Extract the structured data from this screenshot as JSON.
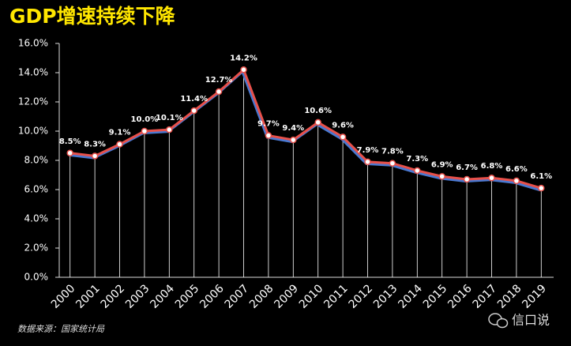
{
  "chart_data": {
    "type": "line",
    "title": "GDP增速持续下降",
    "categories": [
      "2000",
      "2001",
      "2002",
      "2003",
      "2004",
      "2005",
      "2006",
      "2007",
      "2008",
      "2009",
      "2010",
      "2011",
      "2012",
      "2013",
      "2014",
      "2015",
      "2016",
      "2017",
      "2018",
      "2019"
    ],
    "values": [
      8.5,
      8.3,
      9.1,
      10.0,
      10.1,
      11.4,
      12.7,
      14.2,
      9.7,
      9.4,
      10.6,
      9.6,
      7.9,
      7.8,
      7.3,
      6.9,
      6.7,
      6.8,
      6.6,
      6.1
    ],
    "value_labels": [
      "8.5%",
      "8.3%",
      "9.1%",
      "10.0%",
      "10.1%",
      "11.4%",
      "12.7%",
      "14.2%",
      "9.7%",
      "9.4%",
      "10.6%",
      "9.6%",
      "7.9%",
      "7.8%",
      "7.3%",
      "6.9%",
      "6.7%",
      "6.8%",
      "6.6%",
      "6.1%"
    ],
    "color": "#e8504a",
    "ylim": [
      0,
      16
    ],
    "yticks": [
      {
        "value": 0,
        "label": "0.0%"
      },
      {
        "value": 2,
        "label": "2.0%"
      },
      {
        "value": 4,
        "label": "4.0%"
      },
      {
        "value": 6,
        "label": "6.0%"
      },
      {
        "value": 8,
        "label": "8.0%"
      },
      {
        "value": 10,
        "label": "10.0%"
      },
      {
        "value": 12,
        "label": "12.0%"
      },
      {
        "value": 14,
        "label": "14.0%"
      },
      {
        "value": 16,
        "label": "16.0%"
      }
    ],
    "source": "数据来源：国家统计局",
    "watermark": "信口说"
  }
}
